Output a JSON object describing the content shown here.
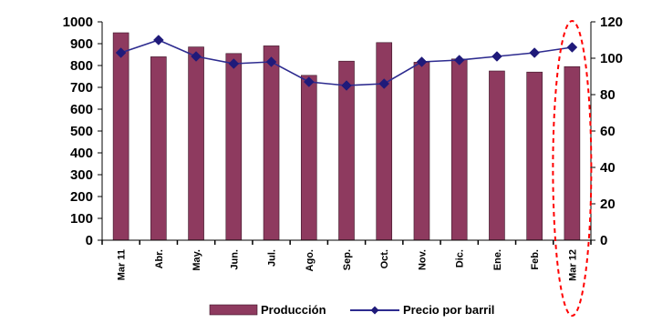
{
  "chart_data": {
    "type": "bar",
    "categories": [
      "Mar 11",
      "Abr.",
      "May.",
      "Jun.",
      "Jul.",
      "Ago.",
      "Sep.",
      "Oct.",
      "Nov.",
      "Dic.",
      "Ene.",
      "Feb.",
      "Mar 12"
    ],
    "series": [
      {
        "name": "Producción",
        "type": "bar",
        "axis": "left",
        "color": "#8e3a5f",
        "values": [
          950,
          840,
          885,
          855,
          890,
          755,
          820,
          905,
          815,
          830,
          775,
          770,
          795
        ]
      },
      {
        "name": "Precio por barril",
        "type": "line",
        "axis": "right",
        "color": "#2d2b8f",
        "marker_color": "#1f1a7a",
        "values": [
          103,
          110,
          101,
          97,
          98,
          87,
          85,
          86,
          98,
          99,
          101,
          103,
          106
        ]
      }
    ],
    "y_left": {
      "ylim": [
        0,
        1000
      ],
      "ticks": [
        0,
        100,
        200,
        300,
        400,
        500,
        600,
        700,
        800,
        900,
        1000
      ]
    },
    "y_right": {
      "ylim": [
        0,
        120
      ],
      "ticks": [
        0,
        20,
        40,
        60,
        80,
        100,
        120
      ]
    },
    "grid": false,
    "legend_position": "bottom",
    "highlight": {
      "category": "Mar 12",
      "style": "dashed-ellipse",
      "color": "#ff0000"
    }
  }
}
